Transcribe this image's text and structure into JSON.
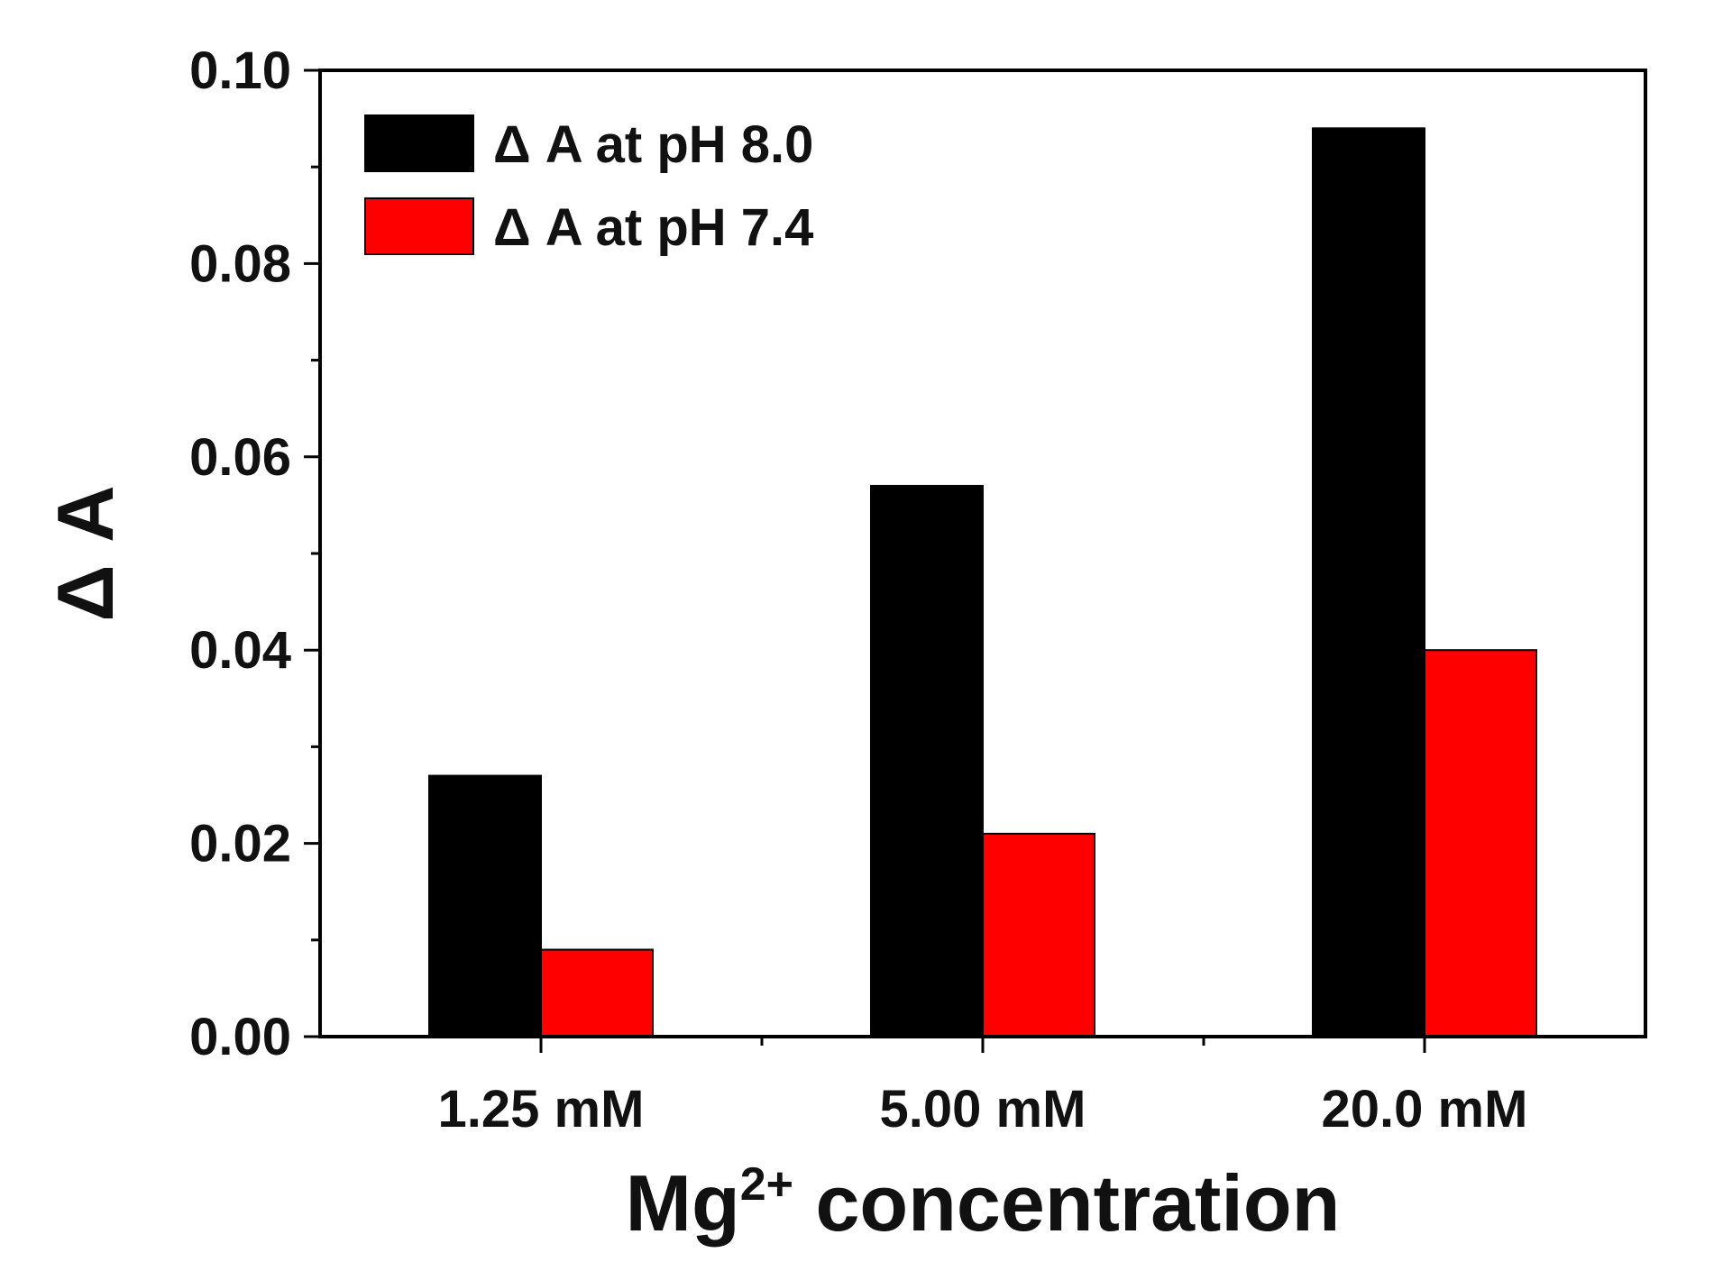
{
  "chart_data": {
    "type": "bar",
    "categories": [
      "1.25 mM",
      "5.00 mM",
      "20.0 mM"
    ],
    "series": [
      {
        "name": "Δ A at pH 8.0",
        "color": "#000000",
        "values": [
          0.027,
          0.057,
          0.094
        ]
      },
      {
        "name": "Δ A at pH 7.4",
        "color": "#ff0000",
        "values": [
          0.009,
          0.021,
          0.04
        ]
      }
    ],
    "ylabel": "Δ A",
    "xlabel": {
      "base": "Mg",
      "superscript": "2+",
      "rest": " concentration"
    },
    "ylim": [
      0,
      0.1
    ],
    "yticks": [
      "0.00",
      "0.02",
      "0.04",
      "0.06",
      "0.08",
      "0.10"
    ],
    "legend_position": "top-left",
    "grid": false
  }
}
